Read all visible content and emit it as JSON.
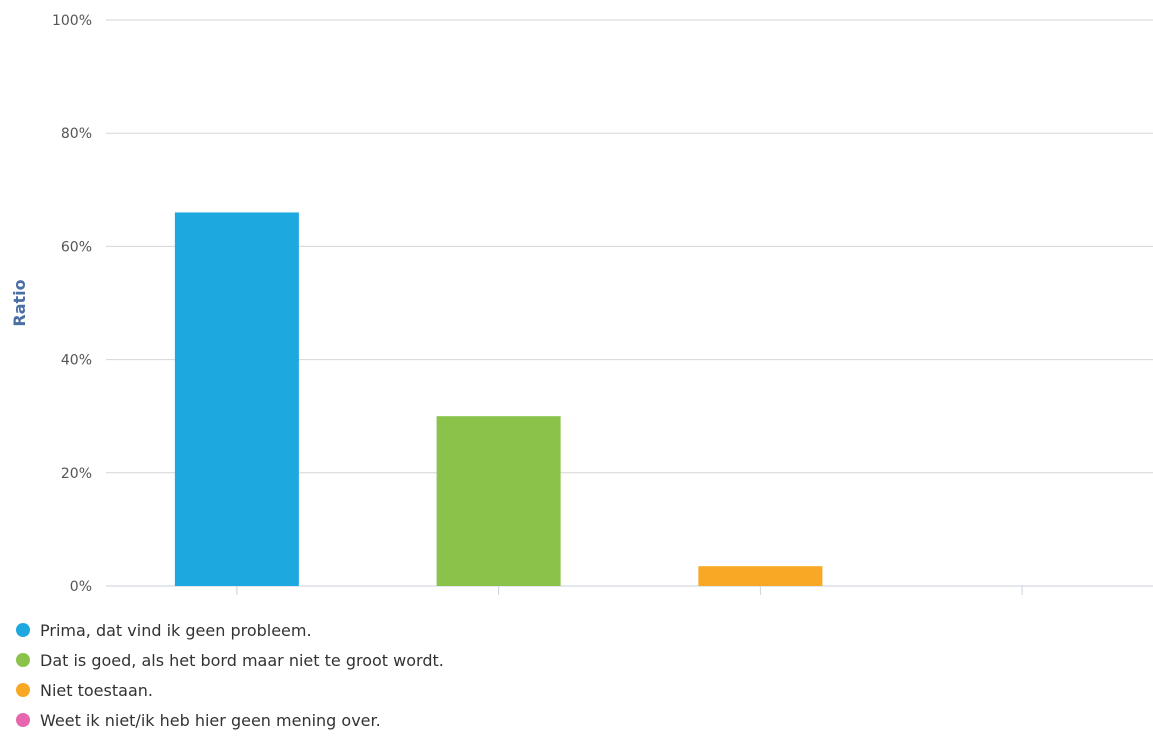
{
  "chart_data": {
    "type": "bar",
    "ylabel": "Ratio",
    "xlabel": "",
    "ylim": [
      0,
      100
    ],
    "y_unit": "%",
    "yticks": [
      "0%",
      "20%",
      "40%",
      "60%",
      "80%",
      "100%"
    ],
    "grid": true,
    "legend_position": "bottom-left",
    "categories": [
      "Prima, dat vind ik geen probleem.",
      "Dat is goed, als het bord maar niet te groot wordt.",
      "Niet toestaan.",
      "Weet ik niet/ik heb hier geen mening over."
    ],
    "values": [
      66,
      30,
      3.5,
      0
    ],
    "colors": [
      "#1ea8e0",
      "#8bc34a",
      "#f9a825",
      "#e667af"
    ]
  }
}
